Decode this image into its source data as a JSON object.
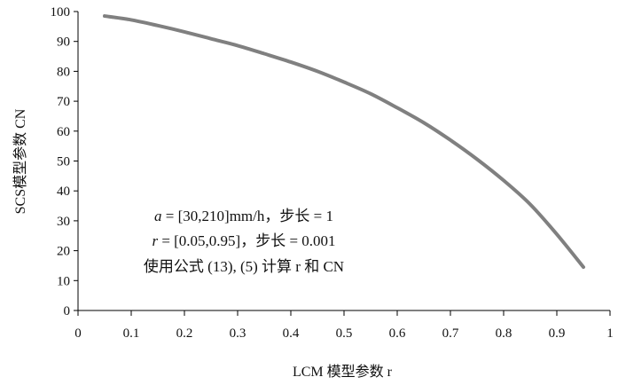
{
  "chart_data": {
    "type": "line",
    "title": "",
    "xlabel": "LCM 模型参数 r",
    "ylabel": "SCS模型参数  CN",
    "xlim": [
      0,
      1
    ],
    "ylim": [
      0,
      100
    ],
    "x_ticks": [
      0,
      0.1,
      0.2,
      0.3,
      0.4,
      0.5,
      0.6,
      0.7,
      0.8,
      0.9,
      1
    ],
    "x_tick_labels": [
      "0",
      "0.1",
      "0.2",
      "0.3",
      "0.4",
      "0.5",
      "0.6",
      "0.7",
      "0.8",
      "0.9",
      "1"
    ],
    "y_ticks": [
      0,
      10,
      20,
      30,
      40,
      50,
      60,
      70,
      80,
      90,
      100
    ],
    "y_tick_labels": [
      "0",
      "10",
      "20",
      "30",
      "40",
      "50",
      "60",
      "70",
      "80",
      "90",
      "100"
    ],
    "grid": false,
    "legend": "none",
    "line_color": "#808080",
    "series": [
      {
        "x": [
          0.05,
          0.1,
          0.15,
          0.2,
          0.25,
          0.3,
          0.35,
          0.4,
          0.45,
          0.5,
          0.55,
          0.6,
          0.65,
          0.7,
          0.75,
          0.8,
          0.85,
          0.9,
          0.95
        ],
        "values": [
          98.5,
          97.2,
          95.3,
          93.2,
          90.9,
          88.6,
          85.9,
          83.1,
          80.0,
          76.4,
          72.5,
          67.8,
          62.8,
          57.0,
          50.6,
          43.5,
          35.5,
          25.5,
          14.5
        ]
      }
    ],
    "annotations": [
      {
        "italic": "a",
        "text": " = [30,210]mm/h，步长 = 1"
      },
      {
        "italic": "r",
        "text": " = [0.05,0.95]，步长 = 0.001"
      },
      {
        "italic": "",
        "text": "使用公式 (13), (5) 计算 r 和 CN"
      }
    ]
  }
}
